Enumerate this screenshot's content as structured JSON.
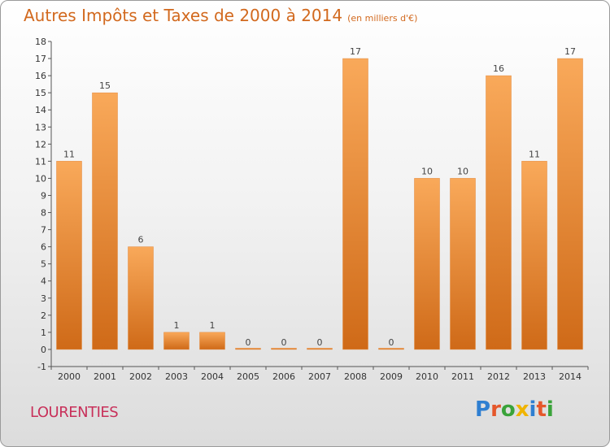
{
  "title": "Autres Impôts et Taxes de 2000 à 2014",
  "unit": "(en milliers d'€)",
  "commune": "LOURENTIES",
  "logo": "Proxiti",
  "colors": {
    "title": "#d2691e",
    "bar_top": "#f9a95a",
    "bar_bottom": "#cf6a18",
    "commune": "#c8305a"
  },
  "chart_data": {
    "type": "bar",
    "title": "Autres Impôts et Taxes de 2000 à 2014",
    "subtitle": "(en milliers d'€)",
    "categories": [
      "2000",
      "2001",
      "2002",
      "2003",
      "2004",
      "2005",
      "2006",
      "2007",
      "2008",
      "2009",
      "2010",
      "2011",
      "2012",
      "2013",
      "2014"
    ],
    "values": [
      11,
      15,
      6,
      1,
      1,
      0,
      0,
      0,
      17,
      0,
      10,
      10,
      16,
      11,
      17
    ],
    "ylim": [
      -1,
      18
    ],
    "yticks": [
      -1,
      0,
      1,
      2,
      3,
      4,
      5,
      6,
      7,
      8,
      9,
      10,
      11,
      12,
      13,
      14,
      15,
      16,
      17,
      18
    ],
    "grid": false,
    "legend": "none"
  }
}
